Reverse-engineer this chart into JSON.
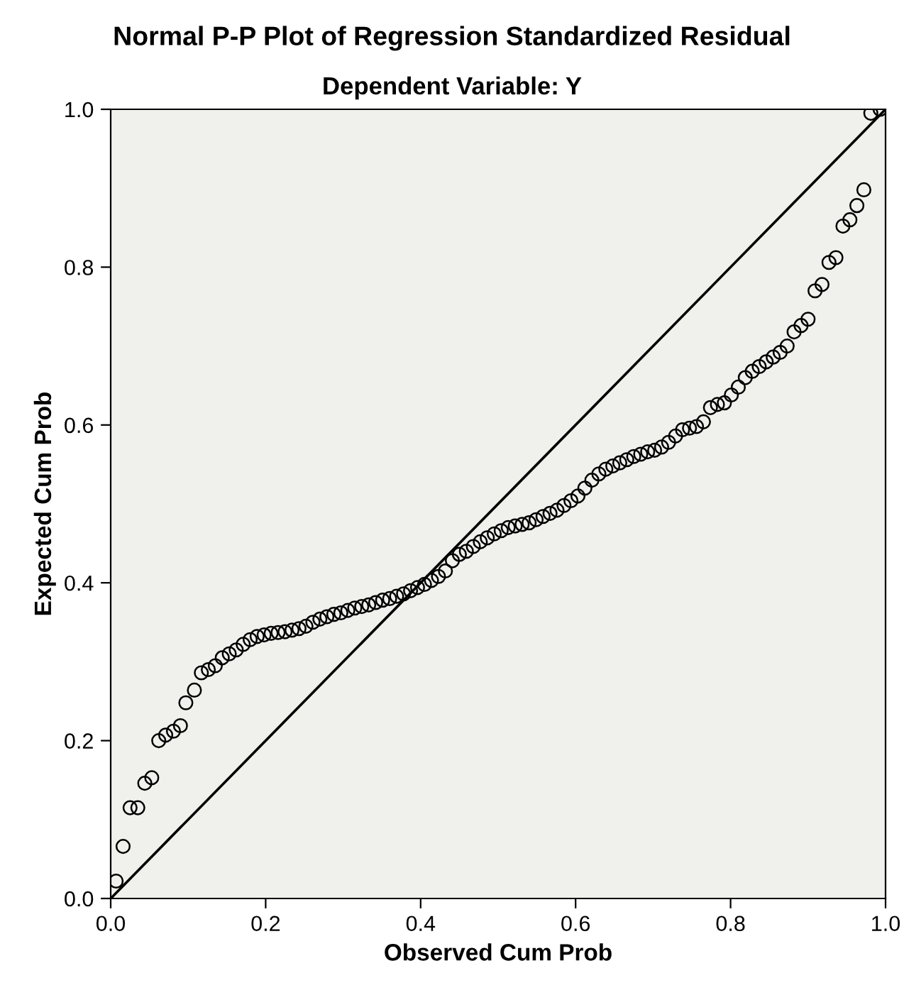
{
  "chart_data": {
    "type": "scatter",
    "title": "Normal P-P Plot of Regression Standardized Residual",
    "subtitle": "Dependent Variable: Y",
    "xlabel": "Observed Cum Prob",
    "ylabel": "Expected Cum Prob",
    "xlim": [
      0,
      1
    ],
    "ylim": [
      0,
      1
    ],
    "xticks": [
      {
        "value": 0,
        "label": "0.0"
      },
      {
        "value": 0.2,
        "label": "0.2"
      },
      {
        "value": 0.4,
        "label": "0.4"
      },
      {
        "value": 0.6,
        "label": "0.6"
      },
      {
        "value": 0.8,
        "label": "0.8"
      },
      {
        "value": 1,
        "label": "1.0"
      }
    ],
    "yticks": [
      {
        "value": 0,
        "label": "0.0"
      },
      {
        "value": 0.2,
        "label": "0.2"
      },
      {
        "value": 0.4,
        "label": "0.4"
      },
      {
        "value": 0.6,
        "label": "0.6"
      },
      {
        "value": 0.8,
        "label": "0.8"
      },
      {
        "value": 1,
        "label": "1.0"
      }
    ],
    "marker": "circle",
    "grid": false,
    "series": [
      {
        "color": "#000000",
        "x": [
          0.007,
          0.016,
          0.025,
          0.035,
          0.044,
          0.053,
          0.062,
          0.071,
          0.081,
          0.09,
          0.097,
          0.108,
          0.117,
          0.126,
          0.135,
          0.144,
          0.153,
          0.162,
          0.171,
          0.18,
          0.189,
          0.198,
          0.207,
          0.216,
          0.225,
          0.234,
          0.243,
          0.252,
          0.261,
          0.27,
          0.279,
          0.288,
          0.297,
          0.306,
          0.315,
          0.324,
          0.333,
          0.342,
          0.351,
          0.36,
          0.369,
          0.378,
          0.387,
          0.396,
          0.405,
          0.414,
          0.423,
          0.432,
          0.441,
          0.45,
          0.459,
          0.468,
          0.477,
          0.486,
          0.495,
          0.504,
          0.513,
          0.522,
          0.531,
          0.54,
          0.549,
          0.558,
          0.567,
          0.576,
          0.585,
          0.594,
          0.603,
          0.612,
          0.621,
          0.63,
          0.639,
          0.648,
          0.657,
          0.666,
          0.675,
          0.684,
          0.693,
          0.702,
          0.711,
          0.72,
          0.729,
          0.738,
          0.747,
          0.756,
          0.765,
          0.774,
          0.783,
          0.792,
          0.801,
          0.81,
          0.819,
          0.828,
          0.837,
          0.846,
          0.855,
          0.864,
          0.873,
          0.882,
          0.891,
          0.9,
          0.909,
          0.918,
          0.927,
          0.936,
          0.945,
          0.954,
          0.963,
          0.972,
          0.981,
          0.993
        ],
        "values": [
          0.022,
          0.066,
          0.115,
          0.115,
          0.146,
          0.153,
          0.2,
          0.207,
          0.212,
          0.219,
          0.248,
          0.264,
          0.286,
          0.29,
          0.295,
          0.305,
          0.31,
          0.315,
          0.322,
          0.328,
          0.332,
          0.334,
          0.336,
          0.337,
          0.338,
          0.34,
          0.342,
          0.345,
          0.35,
          0.354,
          0.357,
          0.36,
          0.362,
          0.365,
          0.368,
          0.37,
          0.372,
          0.375,
          0.378,
          0.38,
          0.383,
          0.386,
          0.39,
          0.394,
          0.398,
          0.403,
          0.408,
          0.415,
          0.428,
          0.436,
          0.44,
          0.446,
          0.452,
          0.457,
          0.462,
          0.466,
          0.47,
          0.472,
          0.474,
          0.476,
          0.48,
          0.484,
          0.488,
          0.492,
          0.498,
          0.504,
          0.51,
          0.52,
          0.53,
          0.538,
          0.544,
          0.548,
          0.552,
          0.556,
          0.56,
          0.563,
          0.566,
          0.568,
          0.572,
          0.578,
          0.586,
          0.594,
          0.596,
          0.598,
          0.604,
          0.622,
          0.626,
          0.628,
          0.638,
          0.648,
          0.66,
          0.668,
          0.674,
          0.68,
          0.686,
          0.692,
          0.7,
          0.718,
          0.726,
          0.734,
          0.77,
          0.778,
          0.806,
          0.812,
          0.852,
          0.86,
          0.878,
          0.898,
          0.995,
          1.0
        ]
      },
      {
        "type": "line",
        "marker": "none",
        "color": "#000000",
        "x": [
          0,
          1
        ],
        "values": [
          0,
          1
        ]
      }
    ]
  }
}
